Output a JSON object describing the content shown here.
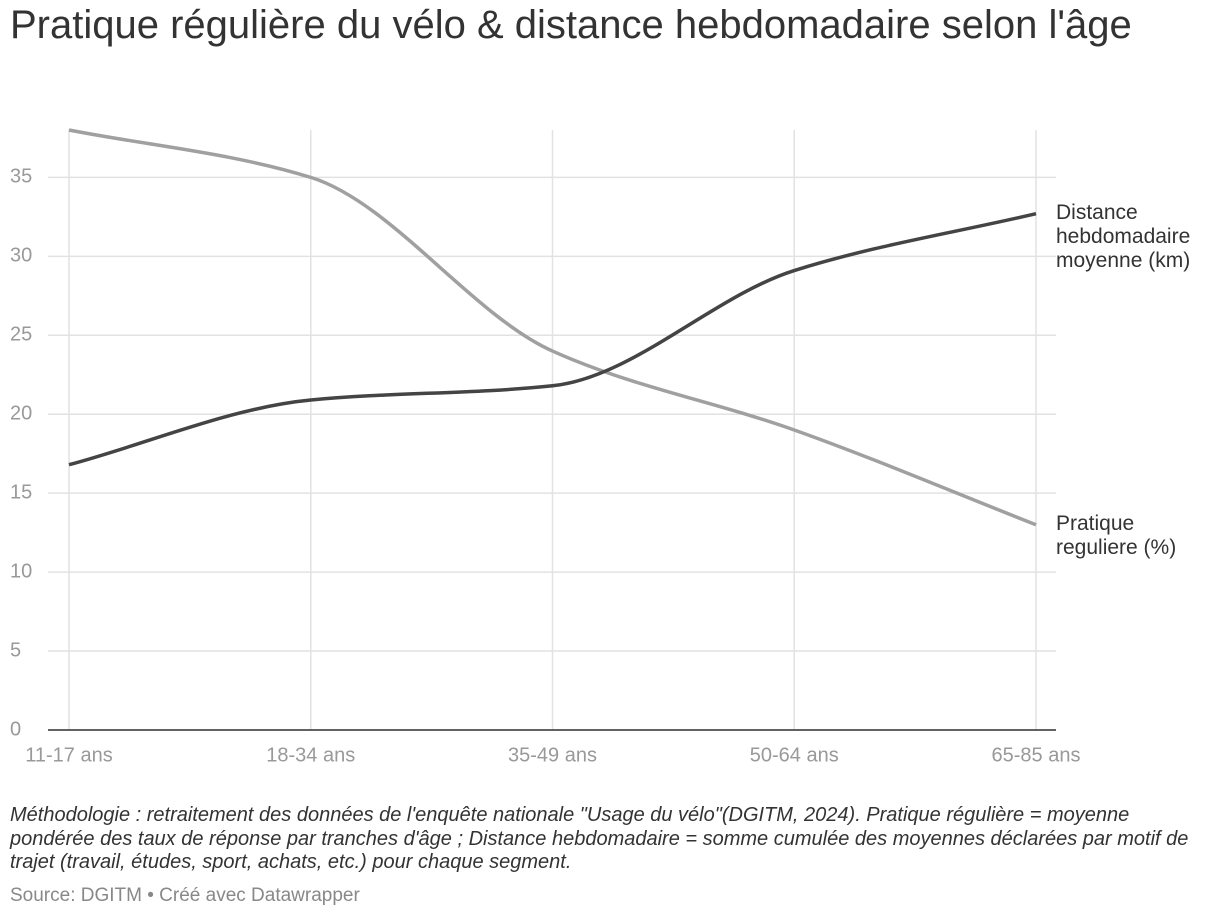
{
  "chart_data": {
    "type": "line",
    "title": "Pratique régulière du vélo & distance hebdomadaire selon l'âge",
    "categories": [
      "11-17 ans",
      "18-34 ans",
      "35-49 ans",
      "50-64 ans",
      "65-85 ans"
    ],
    "series": [
      {
        "name": "Pratique reguliere (%)",
        "color": "#a0a0a0",
        "values": [
          38,
          35,
          24,
          19,
          13
        ]
      },
      {
        "name": "Distance hebdomadaire moyenne (km)",
        "color": "#444444",
        "values": [
          16.8,
          20.9,
          21.8,
          29.1,
          32.7
        ]
      }
    ],
    "ylim": [
      0,
      38
    ],
    "yticks": [
      0,
      5,
      10,
      15,
      20,
      25,
      30,
      35
    ],
    "grid": true,
    "notes": "Méthodologie : retraitement des données de l'enquête nationale \"Usage du vélo\"(DGITM, 2024). Pratique régulière = moyenne pondérée des taux de réponse par tranches d'âge ; Distance hebdomadaire = somme cumulée des moyennes déclarées par motif de trajet (travail, études, sport, achats, etc.) pour chaque segment.",
    "source": "Source: DGITM • Créé avec Datawrapper"
  }
}
